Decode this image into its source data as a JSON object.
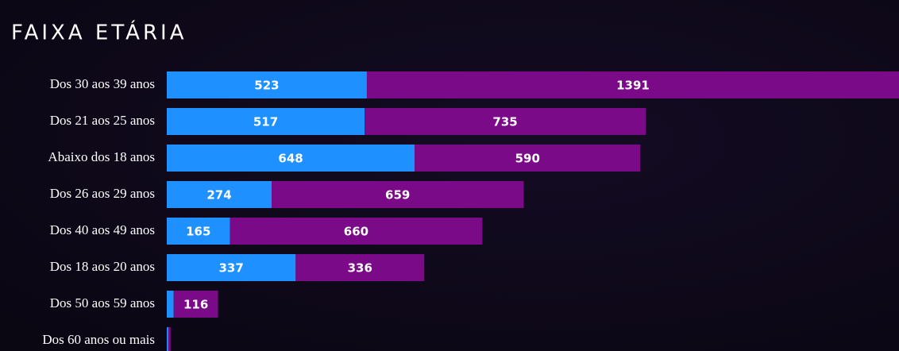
{
  "chart_data": {
    "type": "stacked-barh",
    "title": "FAIXA ETÁRIA",
    "categories": [
      "Dos 30 aos 39 anos",
      "Dos 21 aos 25 anos",
      "Abaixo dos 18 anos",
      "Dos 26 aos 29 anos",
      "Dos 40 aos 49 anos",
      "Dos 18 aos 20 anos",
      "Dos 50 aos 59 anos",
      "Dos 60 anos ou mais"
    ],
    "series": [
      {
        "color": "#1e90ff",
        "values": [
          523,
          517,
          648,
          274,
          165,
          337,
          18,
          4
        ],
        "value_labels": [
          "523",
          "517",
          "648",
          "274",
          "165",
          "337",
          null,
          null
        ]
      },
      {
        "color": "#7a0a88",
        "values": [
          1391,
          735,
          590,
          659,
          660,
          336,
          116,
          6
        ],
        "value_labels": [
          "1391",
          "735",
          "590",
          "659",
          "660",
          "336",
          "116",
          null
        ]
      }
    ],
    "xlim": [
      0,
      1914
    ]
  }
}
